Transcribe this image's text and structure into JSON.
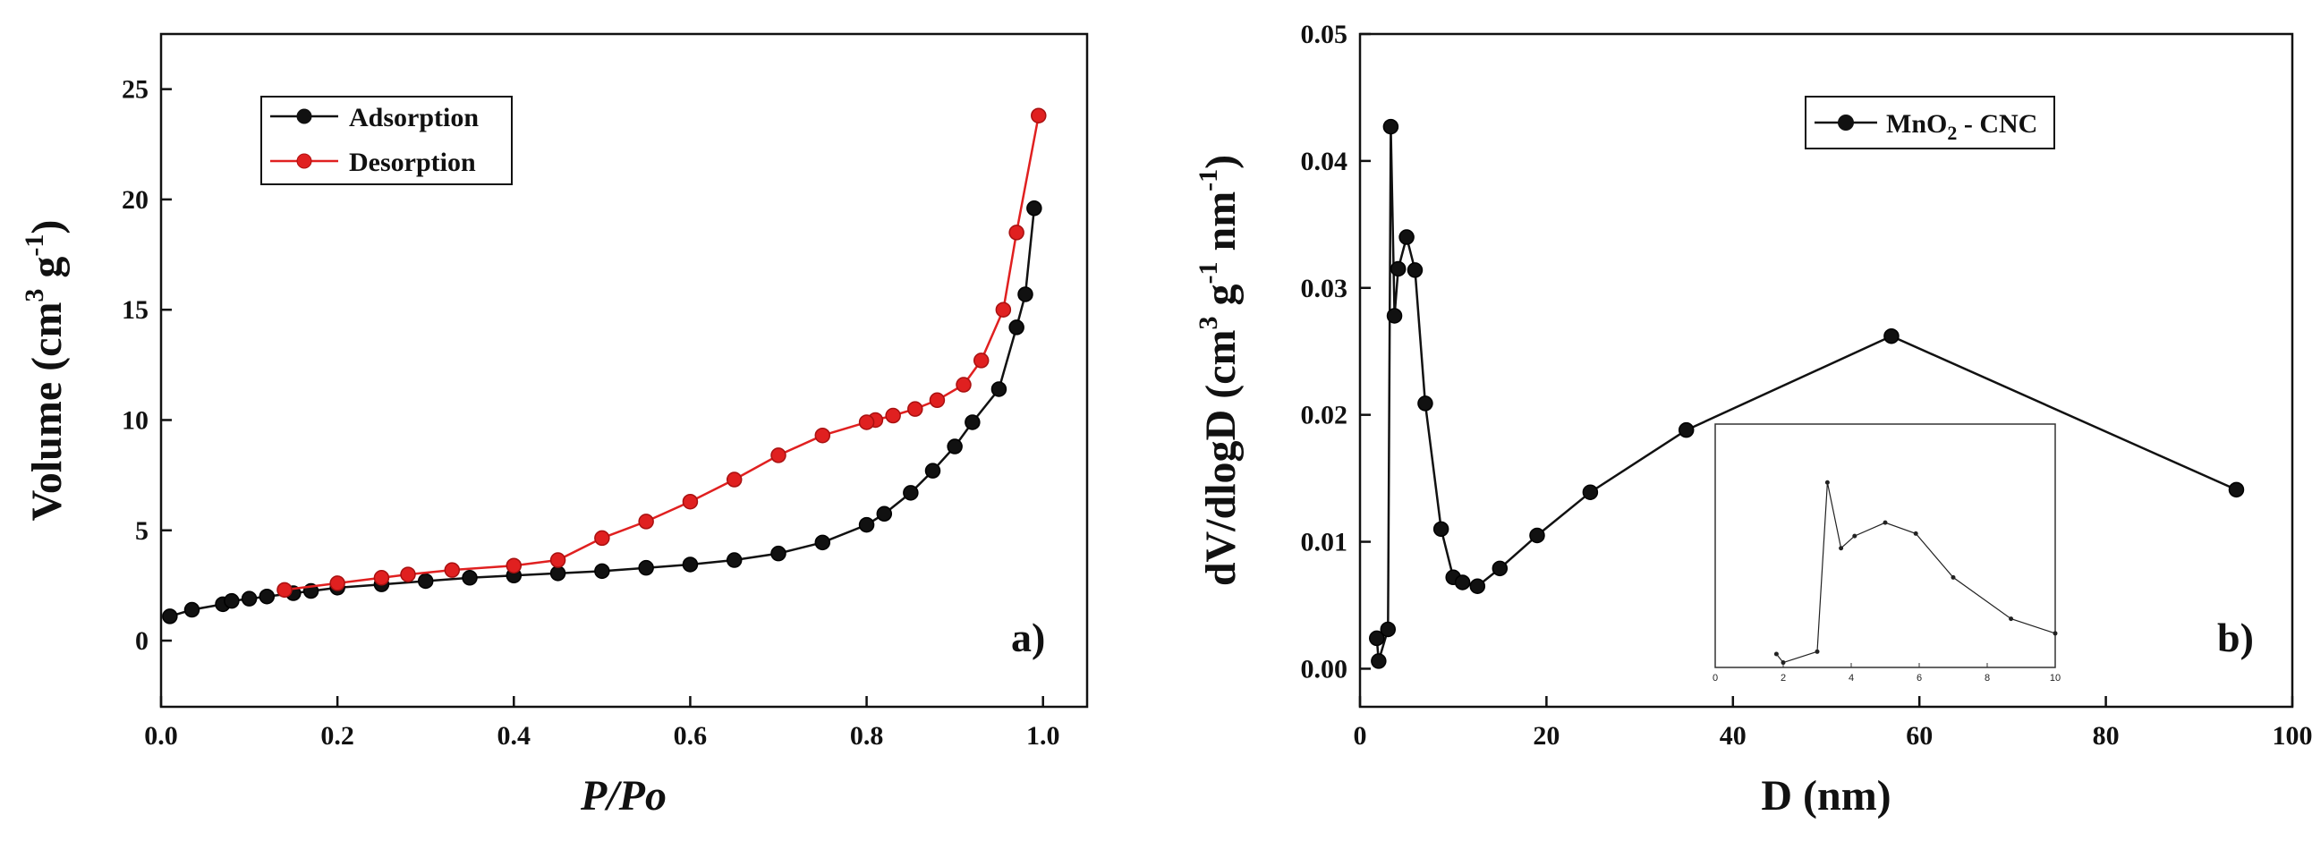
{
  "colors": {
    "adsorption": "#111111",
    "desorption": "#e02020",
    "axes": "#111111"
  },
  "chart_data": [
    {
      "type": "line",
      "panel_label": "a)",
      "xlabel": "P/Po",
      "ylabel_main": "Volume (cm",
      "ylabel_sup": "3",
      "ylabel_mid": "g",
      "ylabel_sup2": "-1",
      "ylabel_end": ")",
      "xlim": [
        0,
        1.05
      ],
      "ylim": [
        -3,
        27.5
      ],
      "xticks": [
        0.0,
        0.2,
        0.4,
        0.6,
        0.8,
        1.0
      ],
      "xtick_labels": [
        "0.0",
        "0.2",
        "0.4",
        "0.6",
        "0.8",
        "1.0"
      ],
      "yticks": [
        0,
        5,
        10,
        15,
        20,
        25
      ],
      "ytick_labels": [
        "0",
        "5",
        "10",
        "15",
        "20",
        "25"
      ],
      "legend_position": "top-left",
      "series": [
        {
          "name": "Adsorption",
          "color": "#111111",
          "x": [
            0.01,
            0.035,
            0.07,
            0.08,
            0.1,
            0.12,
            0.15,
            0.17,
            0.2,
            0.25,
            0.3,
            0.35,
            0.4,
            0.45,
            0.5,
            0.55,
            0.6,
            0.65,
            0.7,
            0.75,
            0.8,
            0.82,
            0.85,
            0.875,
            0.9,
            0.92,
            0.95,
            0.97,
            0.98,
            0.99
          ],
          "y": [
            1.1,
            1.4,
            1.65,
            1.8,
            1.9,
            2.0,
            2.15,
            2.25,
            2.4,
            2.55,
            2.7,
            2.85,
            2.95,
            3.05,
            3.15,
            3.3,
            3.45,
            3.65,
            3.95,
            4.45,
            5.25,
            5.75,
            6.7,
            7.7,
            8.8,
            9.9,
            11.4,
            14.2,
            15.7,
            19.6
          ]
        },
        {
          "name": "Desorption",
          "color": "#e02020",
          "x": [
            0.995,
            0.97,
            0.955,
            0.93,
            0.91,
            0.88,
            0.855,
            0.83,
            0.81,
            0.8,
            0.75,
            0.7,
            0.65,
            0.6,
            0.55,
            0.5,
            0.45,
            0.4,
            0.33,
            0.28,
            0.25,
            0.2,
            0.14
          ],
          "y": [
            23.8,
            18.5,
            15.0,
            12.7,
            11.6,
            10.9,
            10.5,
            10.2,
            10.0,
            9.9,
            9.3,
            8.4,
            7.3,
            6.3,
            5.4,
            4.65,
            3.65,
            3.4,
            3.2,
            3.0,
            2.85,
            2.6,
            2.3
          ]
        }
      ]
    },
    {
      "type": "line",
      "panel_label": "b)",
      "xlabel": "D (nm)",
      "ylabel_main": "dV/dlogD (cm",
      "ylabel_sup": "3",
      "ylabel_mid": "g",
      "ylabel_sup2": "-1",
      "ylabel_mid2": "nm",
      "ylabel_sup3": "-1",
      "ylabel_end": ")",
      "xlim": [
        0,
        100
      ],
      "ylim": [
        -0.003,
        0.05
      ],
      "xticks": [
        0,
        20,
        40,
        60,
        80,
        100
      ],
      "xtick_labels": [
        "0",
        "20",
        "40",
        "60",
        "80",
        "100"
      ],
      "yticks": [
        0.0,
        0.01,
        0.02,
        0.03,
        0.04,
        0.05
      ],
      "ytick_labels": [
        "0.00",
        "0.01",
        "0.02",
        "0.03",
        "0.04",
        "0.05"
      ],
      "legend_position": "top-right",
      "legend_label_main": "MnO",
      "legend_label_sub": "2",
      "legend_label_end": " - CNC",
      "series": [
        {
          "name": "MnO2 - CNC",
          "color": "#111111",
          "x": [
            1.8,
            2.0,
            3.0,
            3.3,
            3.7,
            4.1,
            5.0,
            5.9,
            7.0,
            8.7,
            10.0,
            11.0,
            12.6,
            15.0,
            19.0,
            24.7,
            35.0,
            57.0,
            94.0
          ],
          "y": [
            0.0024,
            0.0006,
            0.0031,
            0.0427,
            0.0278,
            0.0315,
            0.034,
            0.0314,
            0.0209,
            0.011,
            0.0072,
            0.0068,
            0.0065,
            0.0079,
            0.0105,
            0.0139,
            0.0188,
            0.0262,
            0.0141
          ]
        }
      ],
      "inset": {
        "xlim": [
          0,
          10
        ],
        "ylim": [
          0,
          0.02
        ],
        "xticks": [
          0,
          2,
          4,
          6,
          8,
          10
        ],
        "xtick_labels": [
          "0",
          "2",
          "4",
          "6",
          "8",
          "10"
        ],
        "x": [
          1.8,
          2.0,
          3.0,
          3.3,
          3.7,
          4.1,
          5.0,
          5.9,
          7.0,
          8.7,
          10.0
        ],
        "y": [
          0.0011,
          0.0004,
          0.0013,
          0.0152,
          0.0098,
          0.0108,
          0.0119,
          0.011,
          0.0074,
          0.004,
          0.0028
        ]
      }
    }
  ]
}
